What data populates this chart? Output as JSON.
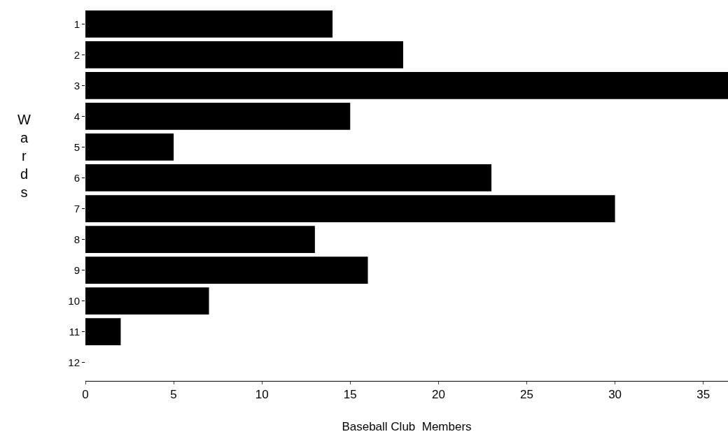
{
  "chart_data": {
    "type": "bar",
    "orientation": "horizontal",
    "xlabel": "Baseball Club  Members",
    "ylabel": "Wards",
    "categories": [
      "1",
      "2",
      "3",
      "4",
      "5",
      "6",
      "7",
      "8",
      "9",
      "10",
      "11",
      "12"
    ],
    "values": [
      14,
      18,
      36.4,
      15,
      5,
      23,
      30,
      13,
      16,
      7,
      2,
      0
    ],
    "color": "#000000",
    "xlim": [
      0,
      36.4
    ],
    "xticks": [
      0,
      5,
      10,
      15,
      20,
      25,
      30,
      35
    ]
  }
}
